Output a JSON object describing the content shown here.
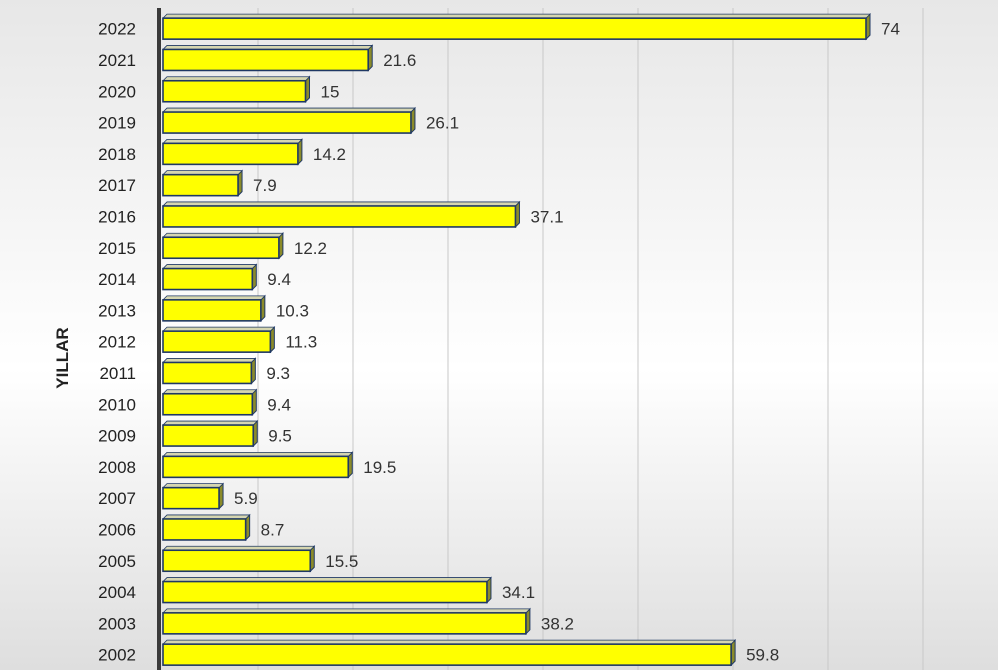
{
  "chart_data": {
    "type": "bar",
    "orientation": "horizontal",
    "title": "",
    "xlabel": "",
    "ylabel": "YILLAR",
    "categories": [
      "2022",
      "2021",
      "2020",
      "2019",
      "2018",
      "2017",
      "2016",
      "2015",
      "2014",
      "2013",
      "2012",
      "2011",
      "2010",
      "2009",
      "2008",
      "2007",
      "2006",
      "2005",
      "2004",
      "2003",
      "2002"
    ],
    "values": [
      74,
      21.6,
      15,
      26.1,
      14.2,
      7.9,
      37.1,
      12.2,
      9.4,
      10.3,
      11.3,
      9.3,
      9.4,
      9.5,
      19.5,
      5.9,
      8.7,
      15.5,
      34.1,
      38.2,
      59.8
    ],
    "xlim": [
      0,
      80
    ],
    "gridlines": "vertical",
    "data_labels": true,
    "bar_color": "#ffff00",
    "bar_edge_color": "#1f3864",
    "bar_3d_side_color": "#8b8b2a"
  }
}
